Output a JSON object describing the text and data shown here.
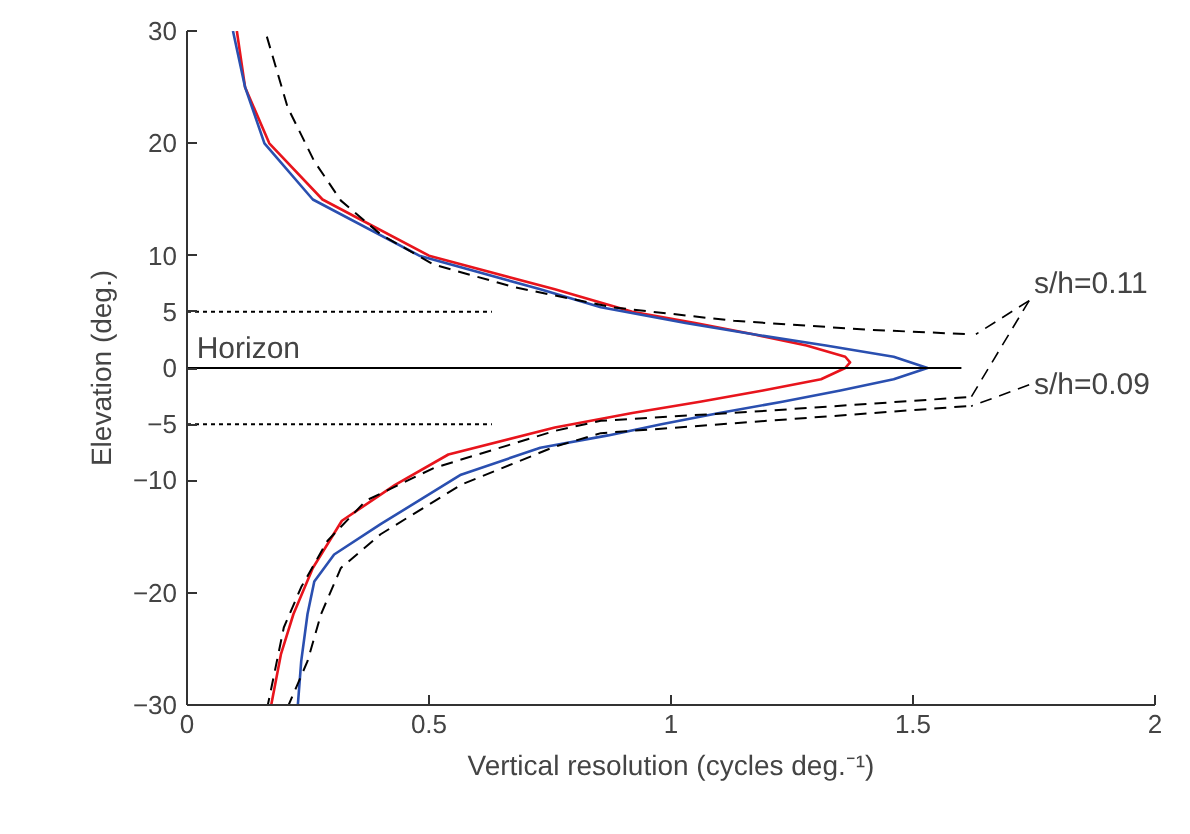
{
  "chart_data": {
    "type": "line",
    "xlabel": "Vertical resolution (cycles deg.⁻¹)",
    "ylabel": "Elevation (deg.)",
    "xlim": [
      0,
      2
    ],
    "ylim": [
      -30,
      30
    ],
    "xticks": [
      0,
      0.5,
      1,
      1.5,
      2
    ],
    "yticks": [
      -30,
      -20,
      -10,
      -5,
      0,
      5,
      10,
      20,
      30
    ],
    "grid": false,
    "legend": "right",
    "marker": "none",
    "series": [
      {
        "color": "#e8141c",
        "line_style": "solid",
        "x": [
          0.103,
          0.12,
          0.17,
          0.28,
          0.5,
          0.76,
          0.92,
          1.05,
          1.17,
          1.28,
          1.36,
          1.37,
          1.36,
          1.31,
          1.19,
          1.06,
          0.92,
          0.76,
          0.54,
          0.43,
          0.32,
          0.26,
          0.22,
          0.194,
          0.174
        ],
        "values": [
          30,
          25,
          20,
          15,
          10,
          7,
          5,
          4,
          3,
          2,
          1,
          0.5,
          0,
          -1,
          -2,
          -3,
          -4,
          -5.3,
          -7.7,
          -10.4,
          -13.6,
          -17.8,
          -21.9,
          -25.5,
          -30
        ]
      },
      {
        "color": "#2a4fb0",
        "line_style": "solid",
        "x": [
          0.095,
          0.12,
          0.16,
          0.26,
          0.48,
          0.73,
          0.855,
          1.03,
          1.17,
          1.32,
          1.46,
          1.53,
          1.46,
          1.35,
          1.23,
          1.1,
          0.98,
          0.87,
          0.73,
          0.566,
          0.4,
          0.304,
          0.263,
          0.249,
          0.236,
          0.229
        ],
        "values": [
          30,
          25,
          20,
          15,
          10,
          7,
          5.4,
          4,
          3,
          2,
          1,
          0,
          -1,
          -2,
          -3,
          -4,
          -5,
          -6,
          -7.1,
          -9.5,
          -13.9,
          -16.6,
          -19,
          -21.9,
          -26.1,
          -30
        ]
      },
      {
        "name": "s/h=0.11",
        "color": "#000000",
        "line_style": "dashed",
        "x": [
          0.165,
          0.208,
          0.263,
          0.318,
          0.4,
          0.51,
          0.676,
          0.88,
          1.13,
          1.41,
          1.62,
          null,
          1.61,
          1.2,
          0.855,
          0.76,
          0.51,
          0.37,
          0.29,
          0.236,
          0.2,
          0.167
        ],
        "values": [
          29.5,
          23.2,
          18.4,
          14.9,
          11.9,
          9.2,
          7.2,
          5.4,
          4.2,
          3.4,
          3,
          null,
          -2.6,
          -3.8,
          -4.7,
          -5.6,
          -8.9,
          -11.8,
          -15.4,
          -19.5,
          -23.1,
          -30
        ]
      },
      {
        "name": "s/h=0.09",
        "color": "#000000",
        "line_style": "dashed",
        "x": [
          1.61,
          1.2,
          0.855,
          0.76,
          0.566,
          0.4,
          0.318,
          0.277,
          0.249,
          0.21
        ],
        "values": [
          -3.4,
          -4.7,
          -5.8,
          -7,
          -10.4,
          -14.8,
          -17.8,
          -21.9,
          -26.1,
          -30
        ]
      },
      {
        "color": "#000000",
        "line_style": "solid",
        "x": [
          0,
          1.6
        ],
        "values": [
          0,
          0
        ]
      },
      {
        "color": "#000000",
        "line_style": "dotted",
        "x": [
          0,
          0.63
        ],
        "values": [
          5,
          5
        ]
      },
      {
        "color": "#000000",
        "line_style": "dotted",
        "x": [
          0,
          0.63
        ],
        "values": [
          -5,
          -5
        ]
      }
    ],
    "annotations": [
      {
        "text": "Horizon",
        "x": 0.02,
        "y": 0
      }
    ]
  }
}
